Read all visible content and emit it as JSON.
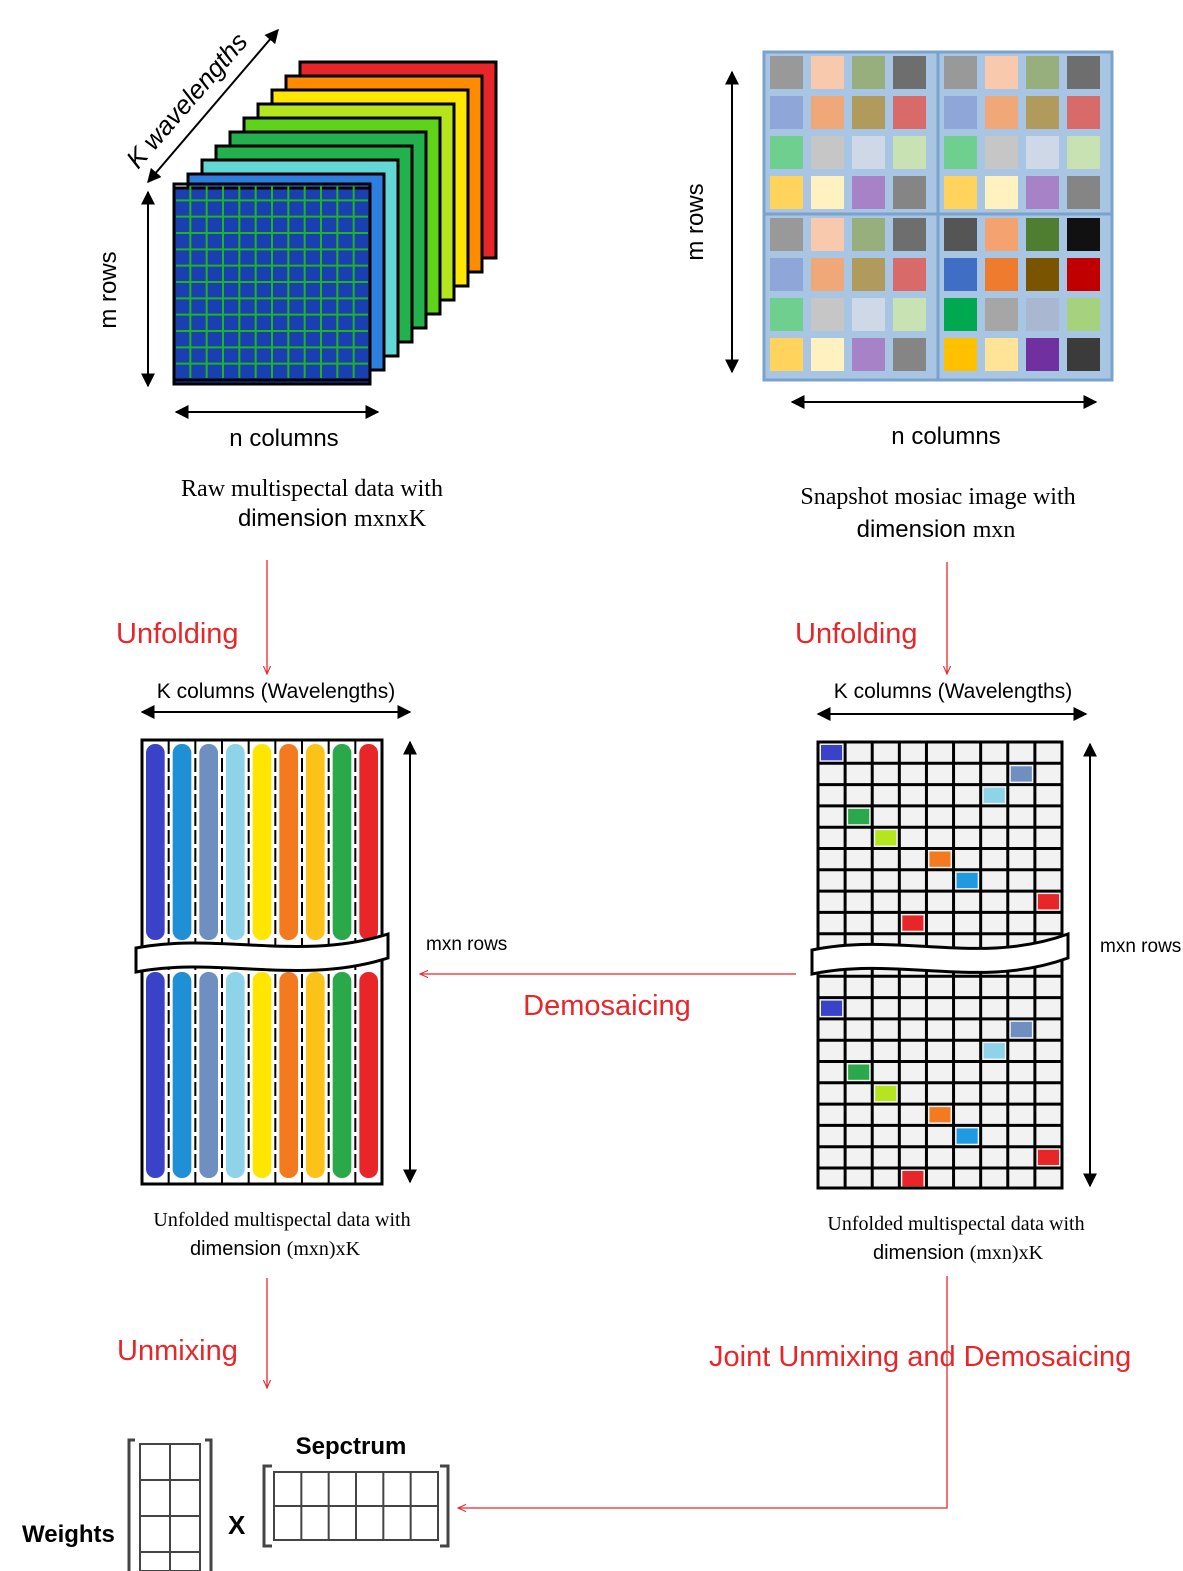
{
  "labels": {
    "k_wavelengths": "K wavelengths",
    "m_rows_left": "m rows",
    "n_columns_left": "n columns",
    "raw_caption_line1": "Raw multispectal data with",
    "raw_caption_line2_a": "dimension",
    "raw_caption_line2_b": "mxnxK",
    "m_rows_right": "m rows",
    "n_columns_right": "n columns",
    "snapshot_caption_line1": "Snapshot mosiac image with",
    "snapshot_caption_line2_a": "dimension",
    "snapshot_caption_line2_b": "mxn",
    "unfolding_left": "Unfolding",
    "unfolding_right": "Unfolding",
    "k_columns_left": "K columns (Wavelengths)",
    "k_columns_right": "K columns (Wavelengths)",
    "mxn_rows_left": "mxn rows",
    "mxn_rows_right": "mxn rows",
    "demosaicing": "Demosaicing",
    "unfolded_left_line1": "Unfolded multispectal data with",
    "unfolded_left_line2_a": "dimension",
    "unfolded_left_line2_b": "(mxn)xK",
    "unfolded_right_line1": "Unfolded multispectal data with",
    "unfolded_right_line2_a": "dimension",
    "unfolded_right_line2_b": "(mxn)xK",
    "unmixing": "Unmixing",
    "joint": "Joint Unmixing and Demosaicing",
    "weights": "Weights",
    "times": "X",
    "spectrum": "Sepctrum"
  },
  "colors": {
    "flow_red": "#e8262a",
    "band_colors": [
      "#3a43c8",
      "#1f8fd6",
      "#6e8fbf",
      "#8fd3e8",
      "#ffe600",
      "#f47a20",
      "#fbc21a",
      "#2aa84a",
      "#e8262a"
    ],
    "cube_layers": [
      "#e8262a",
      "#ff8c00",
      "#ffe600",
      "#b5e61d",
      "#5fd31a",
      "#22b14c",
      "#22b14c",
      "#63d6d6",
      "#2c7fe0",
      "#1a3fb0"
    ],
    "mosaic_pattern": [
      "#999999",
      "#f9c9ae",
      "#97ae7d",
      "#6e6e6e",
      "#8fa7d8",
      "#f0a878",
      "#b09b5c",
      "#d96a6a",
      "#6fcf8e",
      "#c6c6c6",
      "#cfd8e6",
      "#c9e2b4",
      "#ffd35c",
      "#fff2c0",
      "#a882c6",
      "#858585"
    ],
    "mosaic_pattern_dark": [
      "#555555",
      "#f4a26f",
      "#4f7e31",
      "#111111",
      "#3f6ec4",
      "#ee7b2e",
      "#7a5400",
      "#c00000",
      "#00a850",
      "#a6a6a6",
      "#a9b7d0",
      "#a6d27e",
      "#ffc000",
      "#ffe396",
      "#7030a0",
      "#3b3b3b"
    ]
  }
}
